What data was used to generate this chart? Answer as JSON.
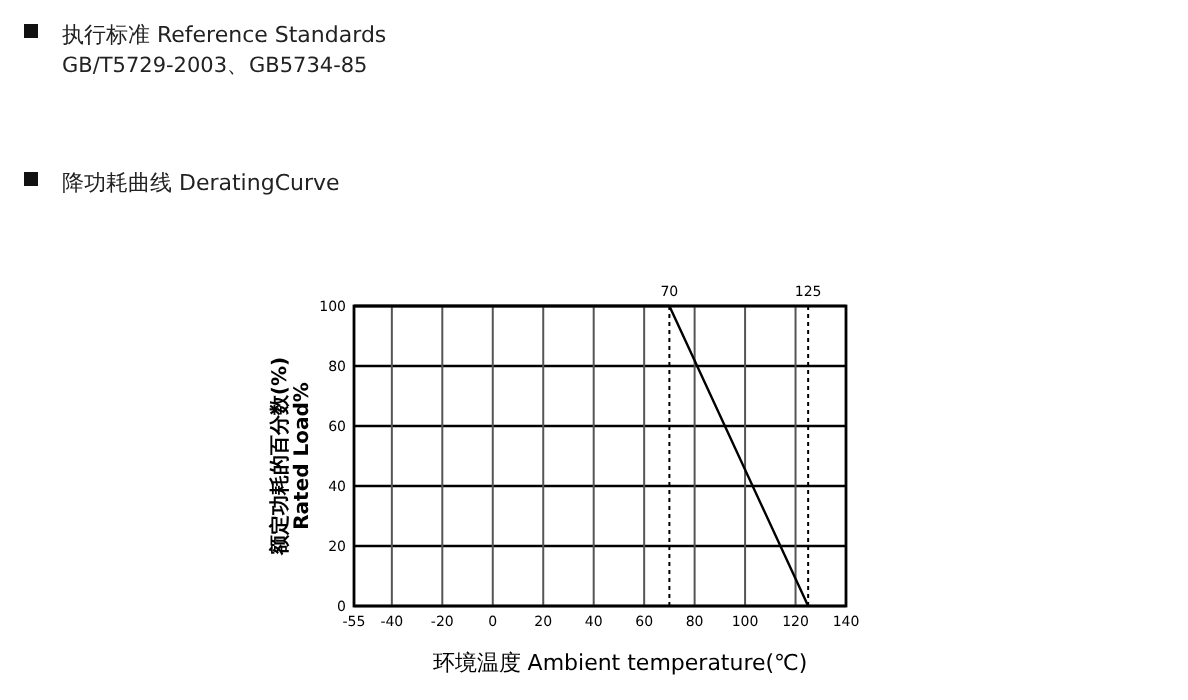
{
  "chart_data": {
    "type": "line",
    "title": "降功耗曲线 DeratingCurve",
    "annotations": [
      "执行标准 Reference Standards",
      "GB/T5729-2003、GB5734-85"
    ],
    "xlabel": "环境温度 Ambient  temperature(℃)",
    "ylabel": "额定功耗的百分数(%)\nRated Load%",
    "x": [
      -55,
      70,
      125
    ],
    "series": [
      {
        "color": "#000000",
        "values": [
          100,
          100,
          0
        ]
      }
    ],
    "xlim": [
      -55,
      140
    ],
    "xticks": [
      -55,
      -40,
      -20,
      0,
      20,
      40,
      60,
      80,
      100,
      120,
      140
    ],
    "ylim": [
      0,
      100
    ],
    "yticks": [
      0,
      20,
      40,
      60,
      80,
      100
    ],
    "grid": true,
    "marker": "none",
    "line_style": "solid",
    "ref_lines": [
      {
        "axis": "x",
        "value": 70,
        "label": "70",
        "line_style": "dotted",
        "color": "#000000"
      },
      {
        "axis": "x",
        "value": 125,
        "label": "125",
        "line_style": "dotted",
        "color": "#000000"
      }
    ]
  }
}
